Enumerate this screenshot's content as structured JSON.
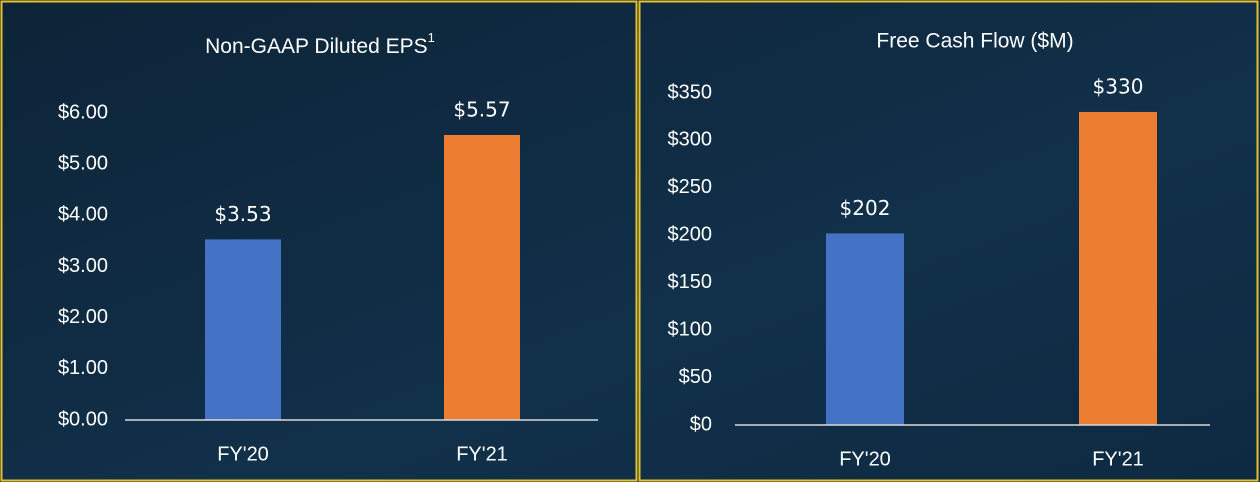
{
  "chart_data": [
    {
      "type": "bar",
      "title": "Non-GAAP Diluted EPS",
      "title_note": "1",
      "categories": [
        "FY'20",
        "FY'21"
      ],
      "series": [
        {
          "values": [
            3.53,
            5.57
          ],
          "value_labels": [
            "$3.53",
            "$5.57"
          ],
          "colors": [
            "#4472c4",
            "#ed7d31"
          ]
        }
      ],
      "ylim": [
        0,
        6
      ],
      "yticks": [
        {
          "value": 0,
          "label": "$0.00"
        },
        {
          "value": 1,
          "label": "$1.00"
        },
        {
          "value": 2,
          "label": "$2.00"
        },
        {
          "value": 3,
          "label": "$3.00"
        },
        {
          "value": 4,
          "label": "$4.00"
        },
        {
          "value": 5,
          "label": "$5.00"
        },
        {
          "value": 6,
          "label": "$6.00"
        }
      ],
      "grid": false
    },
    {
      "type": "bar",
      "title": "Free Cash Flow ($M)",
      "categories": [
        "FY'20",
        "FY'21"
      ],
      "series": [
        {
          "values": [
            202,
            330
          ],
          "value_labels": [
            "$202",
            "$330"
          ],
          "colors": [
            "#4472c4",
            "#ed7d31"
          ]
        }
      ],
      "ylim": [
        0,
        350
      ],
      "yticks": [
        {
          "value": 0,
          "label": "$0"
        },
        {
          "value": 50,
          "label": "$50"
        },
        {
          "value": 100,
          "label": "$100"
        },
        {
          "value": 150,
          "label": "$150"
        },
        {
          "value": 200,
          "label": "$200"
        },
        {
          "value": 250,
          "label": "$250"
        },
        {
          "value": 300,
          "label": "$300"
        },
        {
          "value": 350,
          "label": "$350"
        }
      ],
      "grid": false
    }
  ]
}
